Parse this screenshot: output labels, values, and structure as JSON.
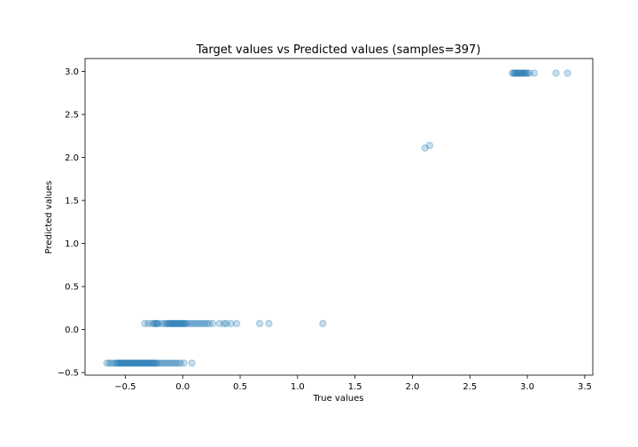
{
  "chart_data": {
    "type": "scatter",
    "title": "Target values vs Predicted values (samples=397)",
    "xlabel": "True values",
    "ylabel": "Predicted values",
    "xlim": [
      -0.85,
      3.57
    ],
    "ylim": [
      -0.53,
      3.15
    ],
    "xticks": [
      -0.5,
      0.0,
      0.5,
      1.0,
      1.5,
      2.0,
      2.5,
      3.0,
      3.5
    ],
    "yticks": [
      -0.5,
      0.0,
      0.5,
      1.0,
      1.5,
      2.0,
      2.5,
      3.0
    ],
    "xtick_labels": [
      "−0.5",
      "0.0",
      "0.5",
      "1.0",
      "1.5",
      "2.0",
      "2.5",
      "3.0",
      "3.5"
    ],
    "ytick_labels": [
      "−0.5",
      "0.0",
      "0.5",
      "1.0",
      "1.5",
      "2.0",
      "2.5",
      "3.0"
    ],
    "grid": false,
    "marker_color": "#1f77b4",
    "marker_alpha": 0.25,
    "series": [
      {
        "name": "",
        "points": [
          [
            -0.66,
            -0.39
          ],
          [
            -0.64,
            -0.39
          ],
          [
            -0.62,
            -0.39
          ],
          [
            -0.6,
            -0.39
          ],
          [
            -0.58,
            -0.39
          ],
          [
            -0.57,
            -0.39
          ],
          [
            -0.56,
            -0.39
          ],
          [
            -0.55,
            -0.39
          ],
          [
            -0.54,
            -0.39
          ],
          [
            -0.53,
            -0.39
          ],
          [
            -0.52,
            -0.39
          ],
          [
            -0.51,
            -0.39
          ],
          [
            -0.5,
            -0.39
          ],
          [
            -0.49,
            -0.39
          ],
          [
            -0.48,
            -0.39
          ],
          [
            -0.47,
            -0.39
          ],
          [
            -0.46,
            -0.39
          ],
          [
            -0.45,
            -0.39
          ],
          [
            -0.44,
            -0.39
          ],
          [
            -0.43,
            -0.39
          ],
          [
            -0.42,
            -0.39
          ],
          [
            -0.41,
            -0.39
          ],
          [
            -0.4,
            -0.39
          ],
          [
            -0.39,
            -0.39
          ],
          [
            -0.38,
            -0.39
          ],
          [
            -0.37,
            -0.39
          ],
          [
            -0.36,
            -0.39
          ],
          [
            -0.35,
            -0.39
          ],
          [
            -0.34,
            -0.39
          ],
          [
            -0.33,
            -0.39
          ],
          [
            -0.32,
            -0.39
          ],
          [
            -0.31,
            -0.39
          ],
          [
            -0.3,
            -0.39
          ],
          [
            -0.29,
            -0.39
          ],
          [
            -0.28,
            -0.39
          ],
          [
            -0.27,
            -0.39
          ],
          [
            -0.26,
            -0.39
          ],
          [
            -0.25,
            -0.39
          ],
          [
            -0.24,
            -0.39
          ],
          [
            -0.23,
            -0.39
          ],
          [
            -0.22,
            -0.39
          ],
          [
            -0.2,
            -0.39
          ],
          [
            -0.18,
            -0.39
          ],
          [
            -0.16,
            -0.39
          ],
          [
            -0.14,
            -0.39
          ],
          [
            -0.12,
            -0.39
          ],
          [
            -0.1,
            -0.39
          ],
          [
            -0.08,
            -0.39
          ],
          [
            -0.06,
            -0.39
          ],
          [
            -0.04,
            -0.39
          ],
          [
            -0.02,
            -0.39
          ],
          [
            0.01,
            -0.39
          ],
          [
            0.08,
            -0.39
          ],
          [
            -0.33,
            0.07
          ],
          [
            -0.3,
            0.07
          ],
          [
            -0.27,
            0.07
          ],
          [
            -0.25,
            0.07
          ],
          [
            -0.24,
            0.07
          ],
          [
            -0.23,
            0.07
          ],
          [
            -0.22,
            0.07
          ],
          [
            -0.21,
            0.07
          ],
          [
            -0.18,
            0.07
          ],
          [
            -0.16,
            0.07
          ],
          [
            -0.14,
            0.07
          ],
          [
            -0.13,
            0.07
          ],
          [
            -0.12,
            0.07
          ],
          [
            -0.11,
            0.07
          ],
          [
            -0.1,
            0.07
          ],
          [
            -0.09,
            0.07
          ],
          [
            -0.08,
            0.07
          ],
          [
            -0.07,
            0.07
          ],
          [
            -0.06,
            0.07
          ],
          [
            -0.05,
            0.07
          ],
          [
            -0.04,
            0.07
          ],
          [
            -0.03,
            0.07
          ],
          [
            -0.02,
            0.07
          ],
          [
            -0.01,
            0.07
          ],
          [
            0.0,
            0.07
          ],
          [
            0.01,
            0.07
          ],
          [
            0.02,
            0.07
          ],
          [
            0.03,
            0.07
          ],
          [
            0.05,
            0.07
          ],
          [
            0.07,
            0.07
          ],
          [
            0.09,
            0.07
          ],
          [
            0.11,
            0.07
          ],
          [
            0.13,
            0.07
          ],
          [
            0.15,
            0.07
          ],
          [
            0.17,
            0.07
          ],
          [
            0.19,
            0.07
          ],
          [
            0.21,
            0.07
          ],
          [
            0.23,
            0.07
          ],
          [
            0.26,
            0.07
          ],
          [
            0.32,
            0.07
          ],
          [
            0.36,
            0.07
          ],
          [
            0.38,
            0.07
          ],
          [
            0.42,
            0.07
          ],
          [
            0.47,
            0.07
          ],
          [
            0.67,
            0.07
          ],
          [
            0.75,
            0.07
          ],
          [
            1.22,
            0.07
          ],
          [
            2.11,
            2.11
          ],
          [
            2.15,
            2.14
          ],
          [
            2.87,
            2.98
          ],
          [
            2.88,
            2.98
          ],
          [
            2.89,
            2.98
          ],
          [
            2.9,
            2.98
          ],
          [
            2.91,
            2.98
          ],
          [
            2.92,
            2.98
          ],
          [
            2.93,
            2.98
          ],
          [
            2.94,
            2.98
          ],
          [
            2.95,
            2.98
          ],
          [
            2.96,
            2.98
          ],
          [
            2.97,
            2.98
          ],
          [
            2.98,
            2.98
          ],
          [
            2.99,
            2.98
          ],
          [
            3.0,
            2.98
          ],
          [
            3.02,
            2.98
          ],
          [
            3.06,
            2.98
          ],
          [
            3.25,
            2.98
          ],
          [
            3.35,
            2.98
          ]
        ]
      }
    ]
  }
}
